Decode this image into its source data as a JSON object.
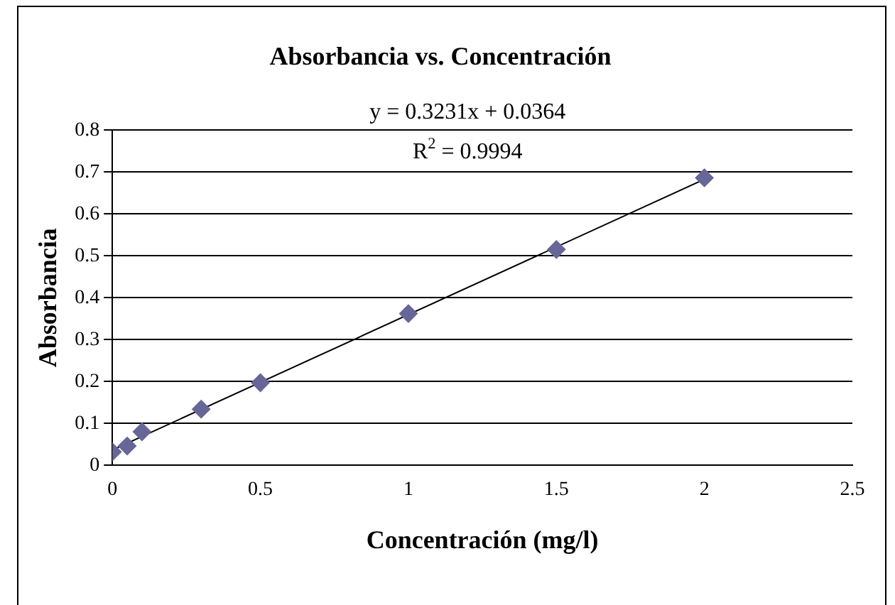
{
  "chart_data": {
    "type": "scatter",
    "title": "Absorbancia vs. Concentración",
    "xlabel": "Concentración (mg/l)",
    "ylabel": "Absorbancia",
    "x": [
      0,
      0.05,
      0.1,
      0.3,
      0.5,
      1,
      1.5,
      2
    ],
    "series": [
      {
        "color": "#666699",
        "values": [
          0.032,
          0.046,
          0.08,
          0.134,
          0.197,
          0.362,
          0.515,
          0.686
        ],
        "marker": "diamond"
      },
      {
        "type": "line",
        "color": "#000000",
        "x": [
          0,
          2
        ],
        "values": [
          0.0364,
          0.6826
        ],
        "marker": "none"
      }
    ],
    "annotations": [
      "y = 0.3231x + 0.0364",
      "R$^{2}$ = 0.9994"
    ],
    "xlim": [
      0,
      2.5
    ],
    "xticks": [
      0,
      0.5,
      1,
      1.5,
      2,
      2.5
    ],
    "ylim": [
      0,
      0.8
    ],
    "yticks": [
      0,
      0.1,
      0.2,
      0.3,
      0.4,
      0.5,
      0.6,
      0.7,
      0.8
    ],
    "grid": "y",
    "legend": false
  }
}
